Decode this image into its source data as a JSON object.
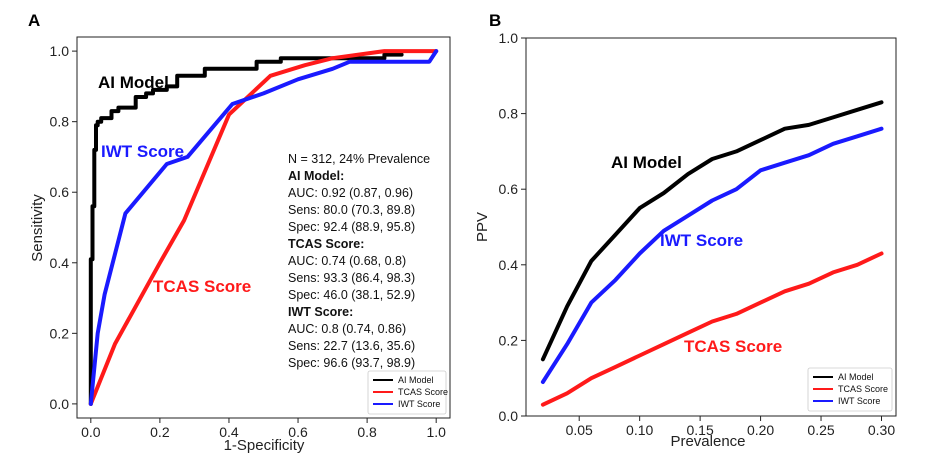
{
  "panels": [
    {
      "letter": "A",
      "xlabel": "1-Specificity",
      "ylabel": "Sensitivity",
      "xticks": [
        "0.0",
        "0.2",
        "0.4",
        "0.6",
        "0.8",
        "1.0"
      ],
      "yticks": [
        "0.0",
        "0.2",
        "0.4",
        "0.6",
        "0.8",
        "1.0"
      ],
      "annotations": [
        {
          "text": "AI Model",
          "color": "#000000"
        },
        {
          "text": "IWT Score",
          "color": "#1a1aff"
        },
        {
          "text": "TCAS Score",
          "color": "#ff1a1a"
        }
      ],
      "stats": {
        "header": "N = 312,  24% Prevalence",
        "groups": [
          {
            "title": "AI Model:",
            "color": "#000000",
            "lines": [
              "AUC: 0.92 (0.87, 0.96)",
              "Sens: 80.0 (70.3, 89.8)",
              "Spec: 92.4 (88.9, 95.8)"
            ]
          },
          {
            "title": "TCAS Score:",
            "color": "#ff1a1a",
            "lines": [
              "AUC: 0.74 (0.68, 0.8)",
              "Sens: 93.3 (86.4, 98.3)",
              "Spec: 46.0 (38.1, 52.9)"
            ]
          },
          {
            "title": "IWT Score:",
            "color": "#1a1aff",
            "lines": [
              "AUC: 0.8 (0.74, 0.86)",
              "Sens: 22.7 (13.6, 35.6)",
              "Spec: 96.6 (93.7, 98.9)"
            ]
          }
        ]
      },
      "legend": [
        "AI Model",
        "TCAS Score",
        "IWT Score"
      ]
    },
    {
      "letter": "B",
      "xlabel": "Prevalence",
      "ylabel": "PPV",
      "xticks": [
        "0.05",
        "0.10",
        "0.15",
        "0.20",
        "0.25",
        "0.30"
      ],
      "yticks": [
        "0.0",
        "0.2",
        "0.4",
        "0.6",
        "0.8",
        "1.0"
      ],
      "annotations": [
        {
          "text": "AI Model",
          "color": "#000000"
        },
        {
          "text": "IWT Score",
          "color": "#1a1aff"
        },
        {
          "text": "TCAS Score",
          "color": "#ff1a1a"
        }
      ],
      "legend": [
        "AI Model",
        "TCAS Score",
        "IWT Score"
      ]
    }
  ],
  "chart_data": [
    {
      "type": "line",
      "xlabel": "1-Specificity",
      "ylabel": "Sensitivity",
      "xlim": [
        -0.04,
        1.04
      ],
      "ylim": [
        -0.04,
        1.04
      ],
      "grid": false,
      "legend_position": "bottom-right",
      "series": [
        {
          "name": "AI Model",
          "color": "#000000",
          "x": [
            0,
            0,
            0.005,
            0.005,
            0.01,
            0.01,
            0.015,
            0.015,
            0.02,
            0.02,
            0.03,
            0.03,
            0.06,
            0.06,
            0.08,
            0.08,
            0.13,
            0.13,
            0.16,
            0.16,
            0.18,
            0.18,
            0.22,
            0.22,
            0.25,
            0.25,
            0.33,
            0.33,
            0.48,
            0.48,
            0.55,
            0.55,
            0.85,
            0.85,
            0.9
          ],
          "y": [
            0,
            0.41,
            0.41,
            0.56,
            0.56,
            0.72,
            0.72,
            0.79,
            0.79,
            0.8,
            0.8,
            0.81,
            0.81,
            0.83,
            0.83,
            0.84,
            0.84,
            0.87,
            0.87,
            0.88,
            0.88,
            0.89,
            0.89,
            0.9,
            0.9,
            0.93,
            0.93,
            0.95,
            0.95,
            0.97,
            0.97,
            0.98,
            0.98,
            0.99,
            0.99
          ]
        },
        {
          "name": "TCAS Score",
          "color": "#ff1a1a",
          "x": [
            0,
            0.07,
            0.2,
            0.27,
            0.4,
            0.52,
            0.62,
            0.7,
            0.85,
            1.0
          ],
          "y": [
            0,
            0.17,
            0.4,
            0.52,
            0.82,
            0.93,
            0.96,
            0.98,
            1.0,
            1.0
          ]
        },
        {
          "name": "IWT Score",
          "color": "#1a1aff",
          "x": [
            0,
            0.02,
            0.04,
            0.1,
            0.22,
            0.28,
            0.41,
            0.5,
            0.6,
            0.7,
            0.75,
            0.8,
            0.98,
            1.0
          ],
          "y": [
            0,
            0.2,
            0.31,
            0.54,
            0.68,
            0.7,
            0.85,
            0.88,
            0.92,
            0.95,
            0.97,
            0.97,
            0.97,
            1.0
          ]
        }
      ]
    },
    {
      "type": "line",
      "xlabel": "Prevalence",
      "ylabel": "PPV",
      "xlim": [
        0.006,
        0.312
      ],
      "ylim": [
        0,
        1.0
      ],
      "grid": false,
      "legend_position": "bottom-right",
      "series": [
        {
          "name": "AI Model",
          "color": "#000000",
          "x": [
            0.02,
            0.04,
            0.06,
            0.08,
            0.1,
            0.12,
            0.14,
            0.16,
            0.18,
            0.2,
            0.22,
            0.24,
            0.26,
            0.28,
            0.3
          ],
          "y": [
            0.15,
            0.29,
            0.41,
            0.48,
            0.55,
            0.59,
            0.64,
            0.68,
            0.7,
            0.73,
            0.76,
            0.77,
            0.79,
            0.81,
            0.83
          ]
        },
        {
          "name": "TCAS Score",
          "color": "#ff1a1a",
          "x": [
            0.02,
            0.04,
            0.06,
            0.08,
            0.1,
            0.12,
            0.14,
            0.16,
            0.18,
            0.2,
            0.22,
            0.24,
            0.26,
            0.28,
            0.3
          ],
          "y": [
            0.03,
            0.06,
            0.1,
            0.13,
            0.16,
            0.19,
            0.22,
            0.25,
            0.27,
            0.3,
            0.33,
            0.35,
            0.38,
            0.4,
            0.43
          ]
        },
        {
          "name": "IWT Score",
          "color": "#1a1aff",
          "x": [
            0.02,
            0.04,
            0.06,
            0.08,
            0.1,
            0.12,
            0.14,
            0.16,
            0.18,
            0.2,
            0.22,
            0.24,
            0.26,
            0.28,
            0.3
          ],
          "y": [
            0.09,
            0.19,
            0.3,
            0.36,
            0.43,
            0.49,
            0.53,
            0.57,
            0.6,
            0.65,
            0.67,
            0.69,
            0.72,
            0.74,
            0.76
          ]
        }
      ]
    }
  ]
}
